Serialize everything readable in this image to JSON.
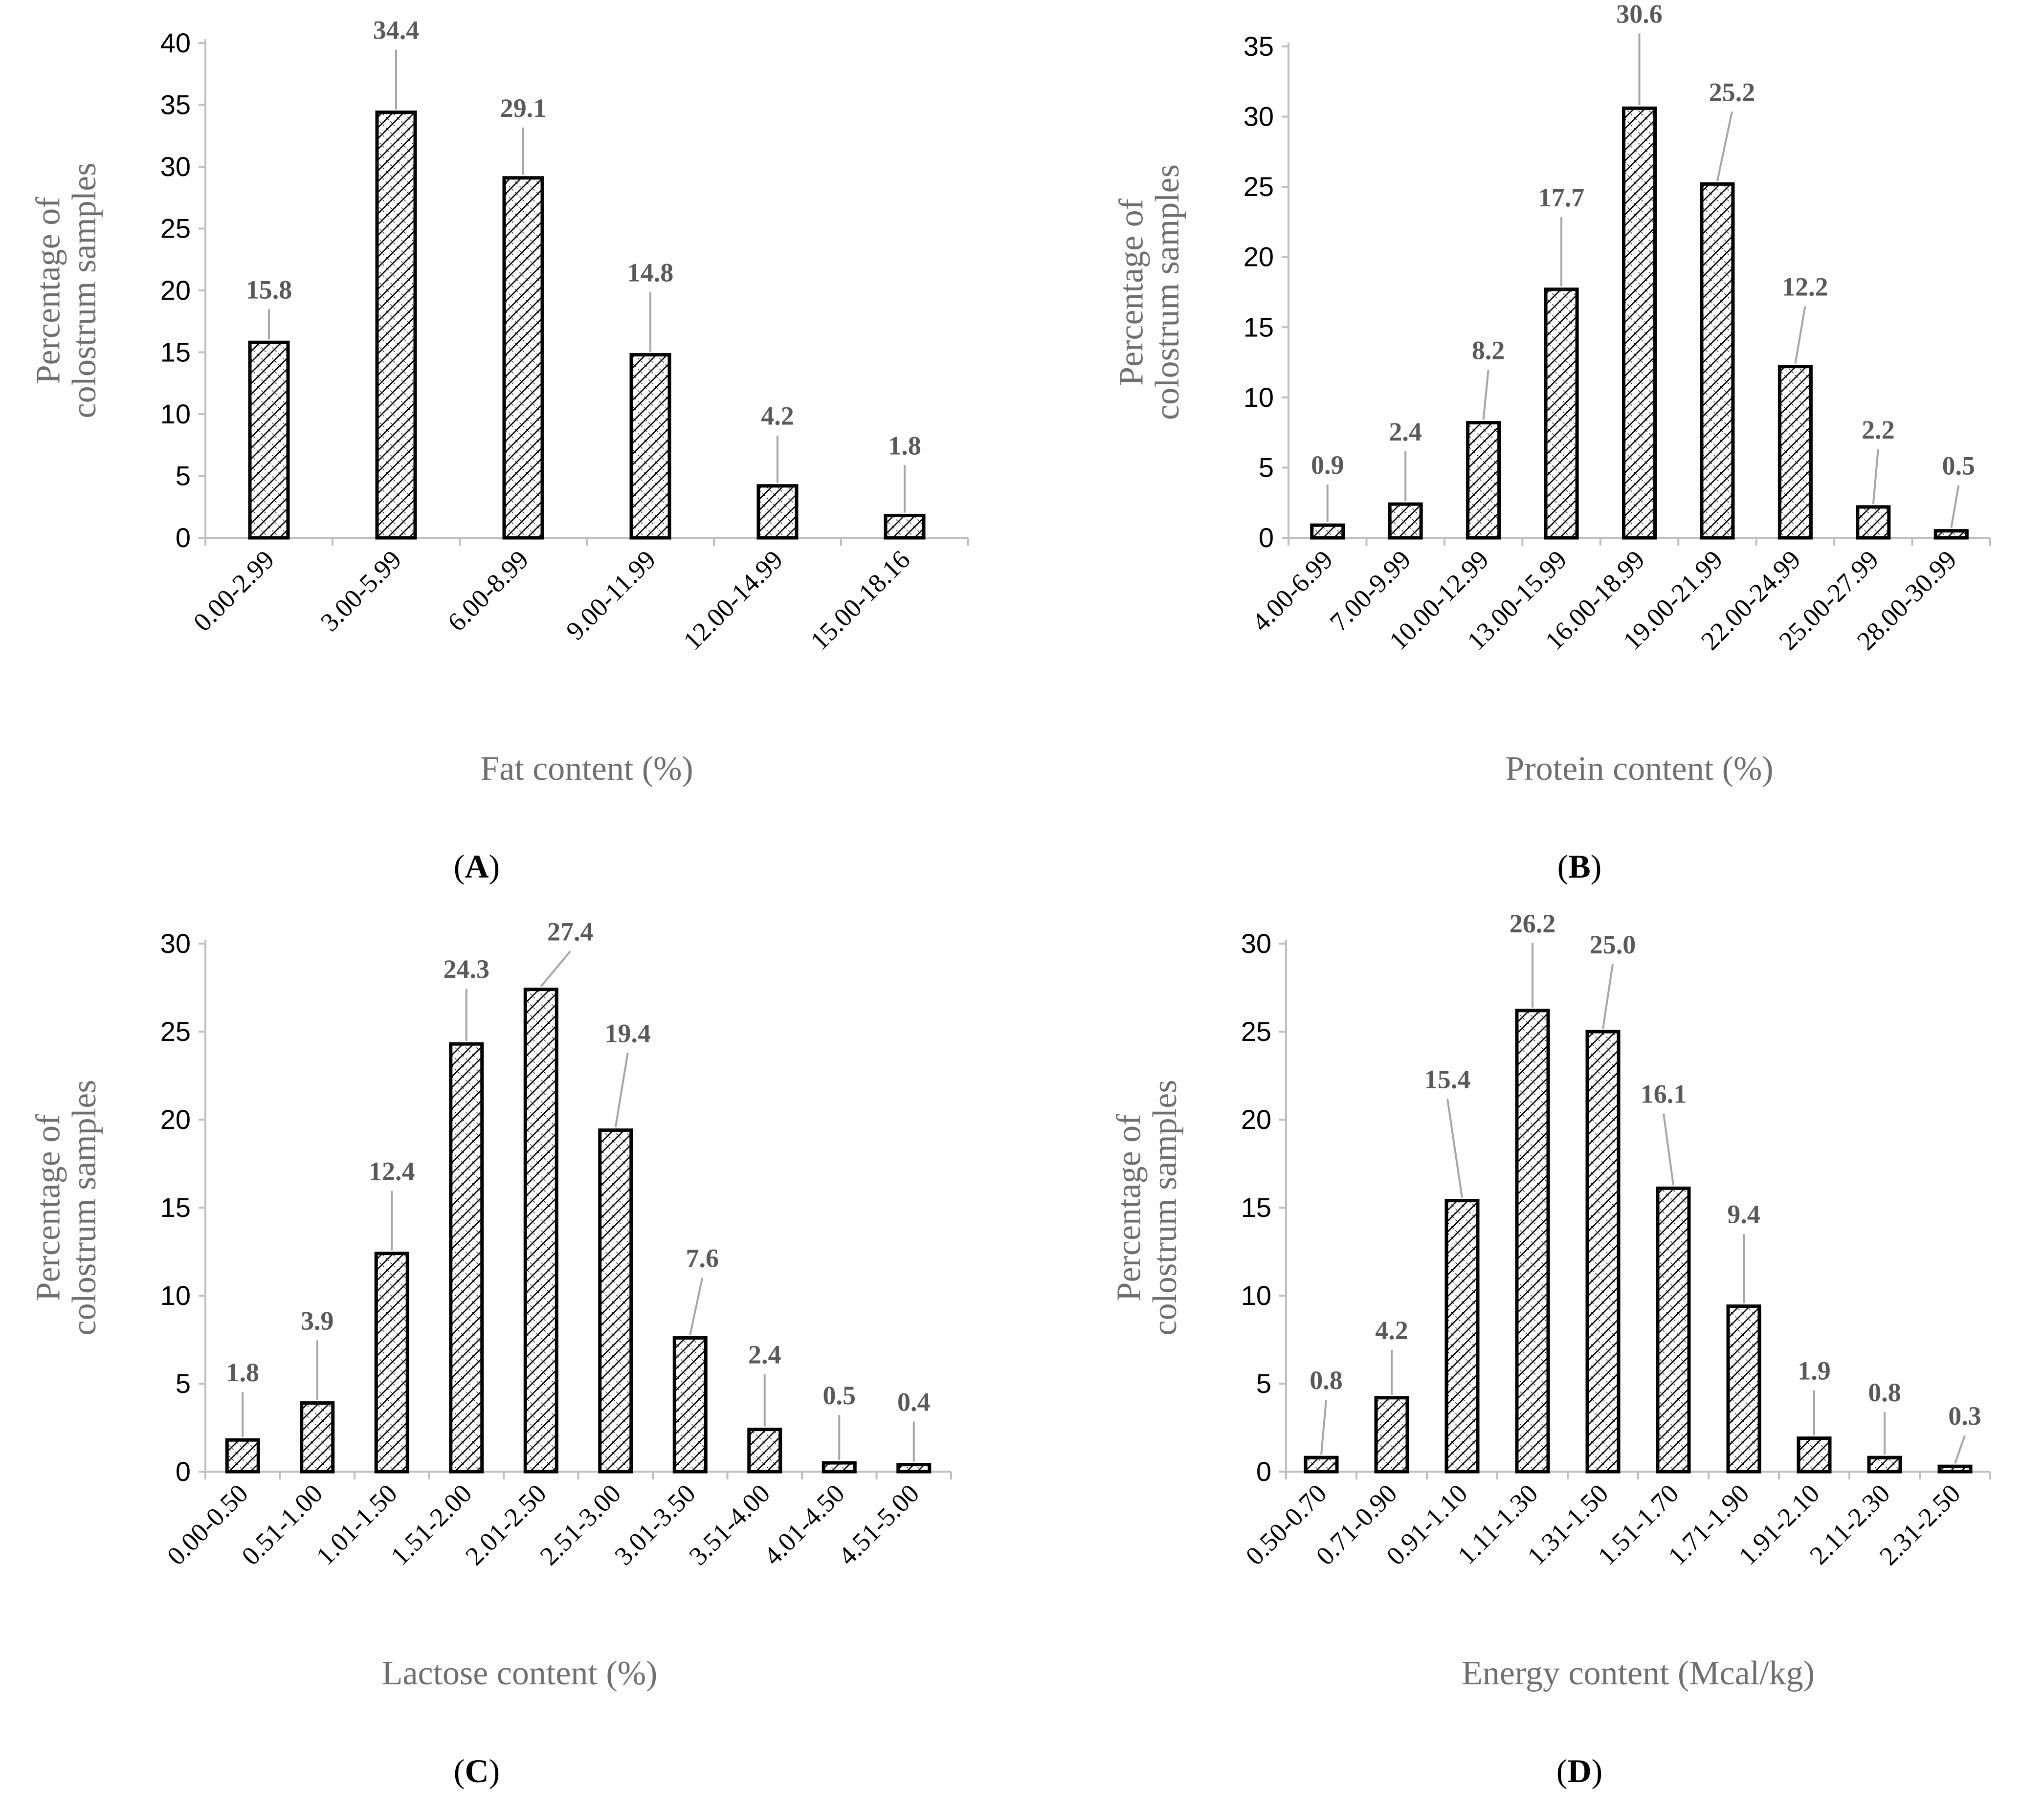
{
  "chart_data": [
    {
      "id": "A",
      "type": "bar",
      "panel_label": "A",
      "xlabel": "Fat content (%)",
      "ylabel_lines": [
        "Percentage of",
        "colostrum samples"
      ],
      "ylim": [
        0,
        40
      ],
      "ytick_step": 5,
      "categories": [
        "0.00-2.99",
        "3.00-5.99",
        "6.00-8.99",
        "9.00-11.99",
        "12.00-14.99",
        "15.00-18.16"
      ],
      "values": [
        15.8,
        34.4,
        29.1,
        14.8,
        4.2,
        1.8
      ],
      "data_labels": [
        "15.8",
        "34.4",
        "29.1",
        "14.8",
        "4.2",
        "1.8"
      ],
      "grid": false,
      "bar_fill": "diagonal-crosshatch"
    },
    {
      "id": "B",
      "type": "bar",
      "panel_label": "B",
      "xlabel": "Protein content (%)",
      "ylabel_lines": [
        "Percentage of",
        "colostrum samples"
      ],
      "ylim": [
        0,
        35
      ],
      "ytick_step": 5,
      "categories": [
        "4.00-6.99",
        "7.00-9.99",
        "10.00-12.99",
        "13.00-15.99",
        "16.00-18.99",
        "19.00-21.99",
        "22.00-24.99",
        "25.00-27.99",
        "28.00-30.99"
      ],
      "values": [
        0.9,
        2.4,
        8.2,
        17.7,
        30.6,
        25.2,
        12.2,
        2.2,
        0.5
      ],
      "data_labels": [
        "0.9",
        "2.4",
        "8.2",
        "17.7",
        "30.6",
        "25.2",
        "12.2",
        "2.2",
        "0.5"
      ],
      "grid": false,
      "bar_fill": "diagonal-crosshatch"
    },
    {
      "id": "C",
      "type": "bar",
      "panel_label": "C",
      "xlabel": "Lactose content (%)",
      "ylabel_lines": [
        "Percentage of",
        "colostrum samples"
      ],
      "ylim": [
        0,
        30
      ],
      "ytick_step": 5,
      "categories": [
        "0.00-0.50",
        "0.51-1.00",
        "1.01-1.50",
        "1.51-2.00",
        "2.01-2.50",
        "2.51-3.00",
        "3.01-3.50",
        "3.51-4.00",
        "4.01-4.50",
        "4.51-5.00"
      ],
      "values": [
        1.8,
        3.9,
        12.4,
        24.3,
        27.4,
        19.4,
        7.6,
        2.4,
        0.5,
        0.4
      ],
      "data_labels": [
        "1.8",
        "3.9",
        "12.4",
        "24.3",
        "27.4",
        "19.4",
        "7.6",
        "2.4",
        "0.5",
        "0.4"
      ],
      "grid": false,
      "bar_fill": "diagonal-crosshatch"
    },
    {
      "id": "D",
      "type": "bar",
      "panel_label": "D",
      "xlabel": "Energy content (Mcal/kg)",
      "ylabel_lines": [
        "Percentage of",
        "colostrum samples"
      ],
      "ylim": [
        0,
        30
      ],
      "ytick_step": 5,
      "categories": [
        "0.50-0.70",
        "0.71-0.90",
        "0.91-1.10",
        "1.11-1.30",
        "1.31-1.50",
        "1.51-1.70",
        "1.71-1.90",
        "1.91-2.10",
        "2.11-2.30",
        "2.31-2.50"
      ],
      "values": [
        0.8,
        4.2,
        15.4,
        26.2,
        25.0,
        16.1,
        9.4,
        1.9,
        0.8,
        0.3
      ],
      "data_labels": [
        "0.8",
        "4.2",
        "15.4",
        "26.2",
        "25.0",
        "16.1",
        "9.4",
        "1.9",
        "0.8",
        "0.3"
      ],
      "grid": false,
      "bar_fill": "diagonal-crosshatch"
    }
  ]
}
